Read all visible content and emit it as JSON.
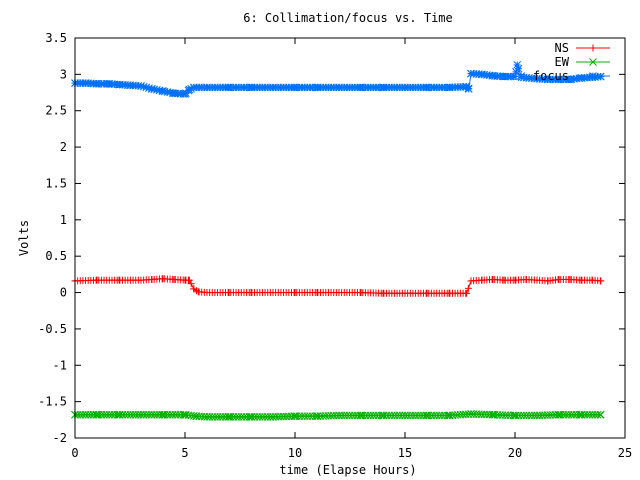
{
  "chart_data": {
    "type": "line",
    "title": "6: Collimation/focus vs. Time",
    "xlabel": "time (Elapse Hours)",
    "ylabel": "Volts",
    "xlim": [
      0,
      25
    ],
    "ylim": [
      -2,
      3.5
    ],
    "x_ticks": [
      "0",
      "5",
      "10",
      "15",
      "20",
      "25"
    ],
    "y_ticks": [
      "-2",
      "-1.5",
      "-1",
      "-0.5",
      "0",
      "0.5",
      "1",
      "1.5",
      "2",
      "2.5",
      "3",
      "3.5"
    ],
    "grid": false,
    "legend_position": "top-right",
    "series": [
      {
        "name": "NS",
        "color": "#ff0000",
        "marker": "plus",
        "x": [
          0,
          1,
          2,
          3,
          3.5,
          4,
          4.5,
          5,
          5.2,
          5.4,
          5.6,
          6,
          7,
          8,
          9,
          10,
          11,
          12,
          13,
          14,
          15,
          16,
          17,
          17.8,
          18,
          18.5,
          19,
          19.5,
          20,
          20.5,
          21,
          21.5,
          22,
          22.5,
          23,
          23.5,
          23.9
        ],
        "y": [
          0.16,
          0.17,
          0.17,
          0.17,
          0.18,
          0.19,
          0.18,
          0.17,
          0.17,
          0.05,
          0.01,
          0.0,
          0.0,
          0.0,
          0.0,
          0.0,
          0.0,
          0.0,
          0.0,
          -0.01,
          -0.01,
          -0.01,
          -0.01,
          -0.01,
          0.16,
          0.17,
          0.18,
          0.17,
          0.17,
          0.18,
          0.17,
          0.16,
          0.18,
          0.18,
          0.17,
          0.17,
          0.16
        ]
      },
      {
        "name": "EW",
        "color": "#00b000",
        "marker": "x",
        "x": [
          0,
          1,
          2,
          3,
          4,
          5,
          5.5,
          6,
          7,
          8,
          9,
          10,
          11,
          12,
          13,
          14,
          15,
          16,
          17,
          18,
          19,
          20,
          21,
          22,
          23,
          23.9
        ],
        "y": [
          -1.68,
          -1.68,
          -1.68,
          -1.68,
          -1.68,
          -1.68,
          -1.7,
          -1.71,
          -1.71,
          -1.71,
          -1.71,
          -1.7,
          -1.7,
          -1.69,
          -1.69,
          -1.69,
          -1.69,
          -1.69,
          -1.69,
          -1.67,
          -1.68,
          -1.69,
          -1.69,
          -1.68,
          -1.68,
          -1.68
        ]
      },
      {
        "name": "focus",
        "color": "#0070ff",
        "marker": "star",
        "x": [
          0,
          0.5,
          1,
          1.5,
          2,
          2.5,
          3,
          3.5,
          4,
          4.5,
          5,
          5.2,
          5.4,
          6,
          7,
          8,
          9,
          10,
          11,
          12,
          13,
          14,
          15,
          16,
          17,
          17.8,
          17.9,
          18,
          18.5,
          19,
          19.5,
          20,
          20.1,
          20.3,
          21,
          21.5,
          22,
          22.5,
          23,
          23.5,
          23.9
        ],
        "y": [
          2.88,
          2.88,
          2.87,
          2.87,
          2.86,
          2.85,
          2.84,
          2.8,
          2.77,
          2.74,
          2.73,
          2.79,
          2.82,
          2.82,
          2.82,
          2.82,
          2.82,
          2.82,
          2.82,
          2.82,
          2.82,
          2.82,
          2.82,
          2.82,
          2.82,
          2.83,
          2.8,
          3.01,
          3.0,
          2.98,
          2.97,
          2.97,
          3.13,
          2.96,
          2.94,
          2.93,
          2.93,
          2.93,
          2.95,
          2.96,
          2.97
        ]
      }
    ]
  }
}
